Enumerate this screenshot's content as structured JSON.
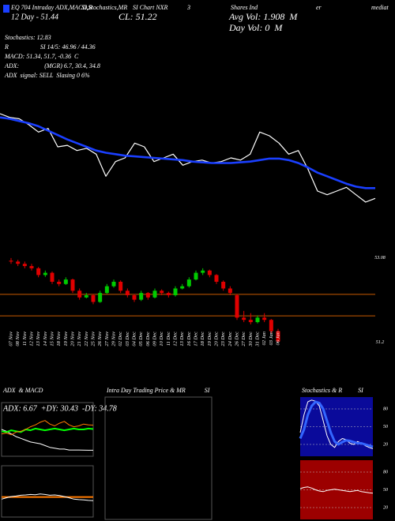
{
  "header": {
    "texts": [
      "EQ 704 Intraday ADX,MACD,R",
      "SI,Stochastics,MR",
      "SI Chart NXR",
      "3",
      "Shares Ind",
      "er",
      "mediat",
      "12 Day - 51.44",
      "CL: 51.22",
      "Avg Vol: 1.908  M",
      "Day Vol: 0  M",
      "Stochastics: 12.83",
      "R                    SI 14/5: 46.96 / 44.36",
      "MACD: 51.34, 51.7, -0.36  C",
      "ADX:                (MGR) 6.7, 30.4, 34.8",
      "ADX  signal: SELL  Slasing 0 6%"
    ]
  },
  "chart_data": [
    {
      "type": "line",
      "ylim": [
        51.5,
        53.0
      ],
      "series": [
        {
          "color": "#ffffff",
          "width": 1.2,
          "values": [
            52.85,
            52.8,
            52.78,
            52.7,
            52.6,
            52.65,
            52.4,
            52.42,
            52.35,
            52.38,
            52.3,
            52.0,
            52.2,
            52.25,
            52.45,
            52.4,
            52.2,
            52.25,
            52.3,
            52.15,
            52.2,
            52.22,
            52.18,
            52.2,
            52.25,
            52.22,
            52.3,
            52.6,
            52.55,
            52.45,
            52.3,
            52.35,
            52.1,
            51.8,
            51.75,
            51.8,
            51.85,
            51.75,
            51.65,
            51.7
          ]
        },
        {
          "color": "#1a3fff",
          "width": 2.6,
          "values": [
            52.8,
            52.78,
            52.75,
            52.72,
            52.68,
            52.62,
            52.56,
            52.5,
            52.45,
            52.4,
            52.35,
            52.32,
            52.3,
            52.28,
            52.27,
            52.26,
            52.25,
            52.24,
            52.23,
            52.22,
            52.2,
            52.19,
            52.18,
            52.18,
            52.18,
            52.19,
            52.2,
            52.22,
            52.24,
            52.24,
            52.22,
            52.18,
            52.12,
            52.05,
            52.0,
            51.95,
            51.9,
            51.86,
            51.84,
            51.84
          ]
        }
      ]
    },
    {
      "type": "candlestick",
      "ylim": [
        51.0,
        53.2
      ],
      "yticks": [
        53.08,
        51.2
      ],
      "up_color": "#00cc00",
      "down_color": "#e00000",
      "hlines": [
        {
          "value": 52.27,
          "color": "#c85a00"
        },
        {
          "value": 51.79,
          "color": "#c85a00"
        }
      ],
      "categories": [
        "07 Nov",
        "08 Nov",
        "11 Nov",
        "12 Nov",
        "13 Nov",
        "14 Nov",
        "15 Nov",
        "18 Nov",
        "19 Nov",
        "20 Nov",
        "21 Nov",
        "22 Nov",
        "25 Nov",
        "26 Nov",
        "27 Nov",
        "29 Nov",
        "02 Dec",
        "03 Dec",
        "04 Dec",
        "05 Dec",
        "06 Dec",
        "09 Dec",
        "10 Dec",
        "11 Dec",
        "12 Dec",
        "13 Dec",
        "16 Dec",
        "17 Dec",
        "18 Dec",
        "19 Dec",
        "20 Dec",
        "23 Dec",
        "24 Dec",
        "26 Dec",
        "27 Dec",
        "30 Dec",
        "31 Dec",
        "02 Jan",
        "03 Jan",
        "06 Jan"
      ],
      "ohlc": [
        [
          53.02,
          53.08,
          52.95,
          53.0
        ],
        [
          53.0,
          53.04,
          52.9,
          52.95
        ],
        [
          52.95,
          53.0,
          52.85,
          52.9
        ],
        [
          52.9,
          52.95,
          52.8,
          52.85
        ],
        [
          52.85,
          52.88,
          52.65,
          52.7
        ],
        [
          52.7,
          52.8,
          52.66,
          52.75
        ],
        [
          52.75,
          52.78,
          52.5,
          52.55
        ],
        [
          52.55,
          52.6,
          52.45,
          52.5
        ],
        [
          52.5,
          52.65,
          52.48,
          52.6
        ],
        [
          52.6,
          52.62,
          52.3,
          52.35
        ],
        [
          52.35,
          52.4,
          52.15,
          52.2
        ],
        [
          52.2,
          52.3,
          52.18,
          52.25
        ],
        [
          52.25,
          52.28,
          52.05,
          52.1
        ],
        [
          52.1,
          52.35,
          52.08,
          52.3
        ],
        [
          52.3,
          52.5,
          52.28,
          52.45
        ],
        [
          52.45,
          52.6,
          52.42,
          52.55
        ],
        [
          52.55,
          52.58,
          52.3,
          52.35
        ],
        [
          52.35,
          52.4,
          52.2,
          52.25
        ],
        [
          52.25,
          52.28,
          52.1,
          52.15
        ],
        [
          52.15,
          52.35,
          52.12,
          52.3
        ],
        [
          52.3,
          52.32,
          52.15,
          52.2
        ],
        [
          52.2,
          52.4,
          52.18,
          52.35
        ],
        [
          52.35,
          52.38,
          52.25,
          52.3
        ],
        [
          52.3,
          52.33,
          52.2,
          52.25
        ],
        [
          52.25,
          52.45,
          52.22,
          52.4
        ],
        [
          52.4,
          52.5,
          52.38,
          52.45
        ],
        [
          52.45,
          52.65,
          52.42,
          52.6
        ],
        [
          52.6,
          52.8,
          52.58,
          52.75
        ],
        [
          52.75,
          52.85,
          52.7,
          52.8
        ],
        [
          52.8,
          52.82,
          52.65,
          52.7
        ],
        [
          52.7,
          52.72,
          52.5,
          52.55
        ],
        [
          52.55,
          52.58,
          52.35,
          52.4
        ],
        [
          52.4,
          52.45,
          52.25,
          52.3
        ],
        [
          52.25,
          52.28,
          51.7,
          51.75
        ],
        [
          51.75,
          51.9,
          51.65,
          51.7
        ],
        [
          51.7,
          51.85,
          51.6,
          51.65
        ],
        [
          51.65,
          51.8,
          51.62,
          51.75
        ],
        [
          51.75,
          51.85,
          51.65,
          51.7
        ],
        [
          51.7,
          51.72,
          51.4,
          51.45
        ],
        [
          51.45,
          51.5,
          51.2,
          51.22
        ]
      ]
    },
    {
      "type": "line",
      "title": "ADX  & MACD",
      "annotation": "ADX: 6.67  +DY: 30.43  -DY: 34.78",
      "ylim": [
        0,
        60
      ],
      "border": "#555555",
      "series": [
        {
          "color": "#ffffff",
          "width": 1,
          "values": [
            30,
            28,
            25,
            22,
            20,
            18,
            16,
            15,
            14,
            12,
            10,
            9,
            8,
            8,
            7,
            7,
            7,
            6.8,
            6.7,
            6.67
          ]
        },
        {
          "color": "#00ff00",
          "width": 2,
          "values": [
            28,
            27,
            29,
            28,
            27,
            30,
            29,
            31,
            30,
            29,
            30,
            31,
            30,
            29,
            30,
            31,
            30,
            30,
            31,
            30.43
          ]
        },
        {
          "color": "#ff7a00",
          "width": 1,
          "values": [
            25,
            26,
            24,
            27,
            28,
            30,
            33,
            35,
            38,
            40,
            36,
            34,
            37,
            39,
            35,
            33,
            34,
            36,
            35,
            34.78
          ]
        }
      ]
    },
    {
      "type": "line",
      "ylim": [
        -1,
        1
      ],
      "border": "#555555",
      "series": [
        {
          "color": "#ff7a00",
          "width": 2,
          "values": [
            -0.22,
            -0.22,
            -0.22,
            -0.22,
            -0.22,
            -0.22,
            -0.22,
            -0.22,
            -0.22,
            -0.22,
            -0.22,
            -0.22,
            -0.22,
            -0.22,
            -0.22,
            -0.22,
            -0.22,
            -0.22,
            -0.22,
            -0.22
          ]
        },
        {
          "color": "#ffffff",
          "width": 1,
          "values": [
            -0.3,
            -0.25,
            -0.2,
            -0.18,
            -0.15,
            -0.14,
            -0.12,
            -0.13,
            -0.1,
            -0.12,
            -0.15,
            -0.14,
            -0.16,
            -0.2,
            -0.25,
            -0.3,
            -0.32,
            -0.33,
            -0.35,
            -0.36
          ]
        }
      ]
    },
    {
      "type": "line",
      "title": "Intra Day Trading Price & MR            SI",
      "border": "#555555"
    },
    {
      "type": "line",
      "title": "Stochastics & R          SI",
      "ylim": [
        0,
        100
      ],
      "yticks": [
        80,
        50,
        20
      ],
      "grid": true,
      "background": "#0a0a9a",
      "series": [
        {
          "color": "#ffffff",
          "width": 1,
          "values": [
            40,
            70,
            92,
            95,
            93,
            85,
            60,
            35,
            20,
            15,
            25,
            30,
            28,
            22,
            20,
            25,
            22,
            18,
            15,
            12.83
          ]
        },
        {
          "color": "#3366ff",
          "width": 3,
          "values": [
            30,
            45,
            70,
            85,
            92,
            90,
            80,
            60,
            40,
            25,
            20,
            24,
            27,
            26,
            24,
            22,
            22,
            20,
            18,
            16
          ]
        }
      ]
    },
    {
      "type": "line",
      "ylim": [
        0,
        100
      ],
      "yticks": [
        80,
        50,
        20
      ],
      "grid": true,
      "background": "#9c0000",
      "series": [
        {
          "color": "#ffffff",
          "width": 1,
          "values": [
            52,
            54,
            55,
            53,
            50,
            48,
            47,
            49,
            50,
            51,
            50,
            49,
            48,
            47,
            48,
            49,
            47,
            46,
            45,
            44.36
          ]
        }
      ]
    }
  ]
}
